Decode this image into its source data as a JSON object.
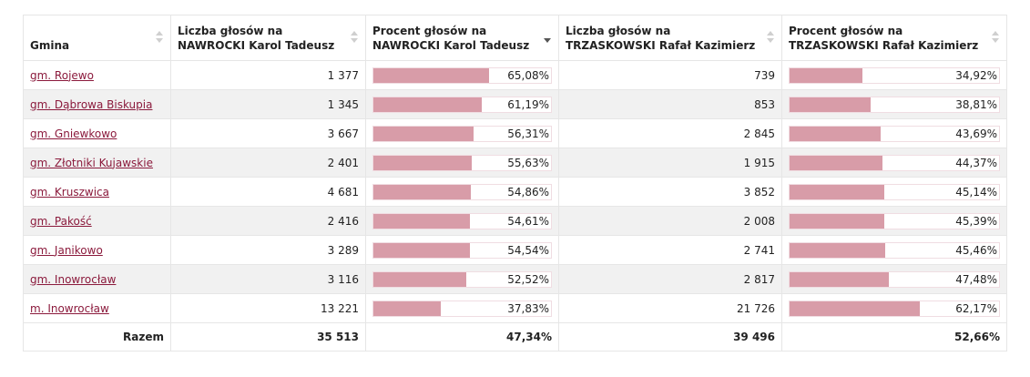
{
  "table": {
    "headers": [
      {
        "label": "Gmina",
        "sort": "none"
      },
      {
        "label_line1": "Liczba głosów na",
        "label_line2": "NAWROCKI Karol Tadeusz",
        "sort": "none"
      },
      {
        "label_line1": "Procent głosów na",
        "label_line2": "NAWROCKI Karol Tadeusz",
        "sort": "descending"
      },
      {
        "label_line1": "Liczba głosów na",
        "label_line2": "TRZASKOWSKI Rafał Kazimierz",
        "sort": "none"
      },
      {
        "label_line1": "Procent głosów na",
        "label_line2": "TRZASKOWSKI Rafał Kazimierz",
        "sort": "none"
      }
    ],
    "rows": [
      {
        "gmina": "gm. Rojewo",
        "n_votes": "1 377",
        "n_pct": "65,08%",
        "n_frac": 0.6508,
        "t_votes": "739",
        "t_pct": "34,92%",
        "t_frac": 0.3492
      },
      {
        "gmina": "gm. Dąbrowa Biskupia",
        "n_votes": "1 345",
        "n_pct": "61,19%",
        "n_frac": 0.6119,
        "t_votes": "853",
        "t_pct": "38,81%",
        "t_frac": 0.3881
      },
      {
        "gmina": "gm. Gniewkowo",
        "n_votes": "3 667",
        "n_pct": "56,31%",
        "n_frac": 0.5631,
        "t_votes": "2 845",
        "t_pct": "43,69%",
        "t_frac": 0.4369
      },
      {
        "gmina": "gm. Złotniki Kujawskie",
        "n_votes": "2 401",
        "n_pct": "55,63%",
        "n_frac": 0.5563,
        "t_votes": "1 915",
        "t_pct": "44,37%",
        "t_frac": 0.4437
      },
      {
        "gmina": "gm. Kruszwica",
        "n_votes": "4 681",
        "n_pct": "54,86%",
        "n_frac": 0.5486,
        "t_votes": "3 852",
        "t_pct": "45,14%",
        "t_frac": 0.4514
      },
      {
        "gmina": "gm. Pakość",
        "n_votes": "2 416",
        "n_pct": "54,61%",
        "n_frac": 0.5461,
        "t_votes": "2 008",
        "t_pct": "45,39%",
        "t_frac": 0.4539
      },
      {
        "gmina": "gm. Janikowo",
        "n_votes": "3 289",
        "n_pct": "54,54%",
        "n_frac": 0.5454,
        "t_votes": "2 741",
        "t_pct": "45,46%",
        "t_frac": 0.4546
      },
      {
        "gmina": "gm. Inowrocław",
        "n_votes": "3 116",
        "n_pct": "52,52%",
        "n_frac": 0.5252,
        "t_votes": "2 817",
        "t_pct": "47,48%",
        "t_frac": 0.4748
      },
      {
        "gmina": "m. Inowrocław",
        "n_votes": "13 221",
        "n_pct": "37,83%",
        "n_frac": 0.3783,
        "t_votes": "21 726",
        "t_pct": "62,17%",
        "t_frac": 0.6217
      }
    ],
    "total": {
      "label": "Razem",
      "n_votes": "35 513",
      "n_pct": "47,34%",
      "t_votes": "39 496",
      "t_pct": "52,66%"
    }
  },
  "colors": {
    "bar_fill": "#d89ca8",
    "link": "#8b1a3c",
    "row_alt": "#f1f1f1"
  }
}
